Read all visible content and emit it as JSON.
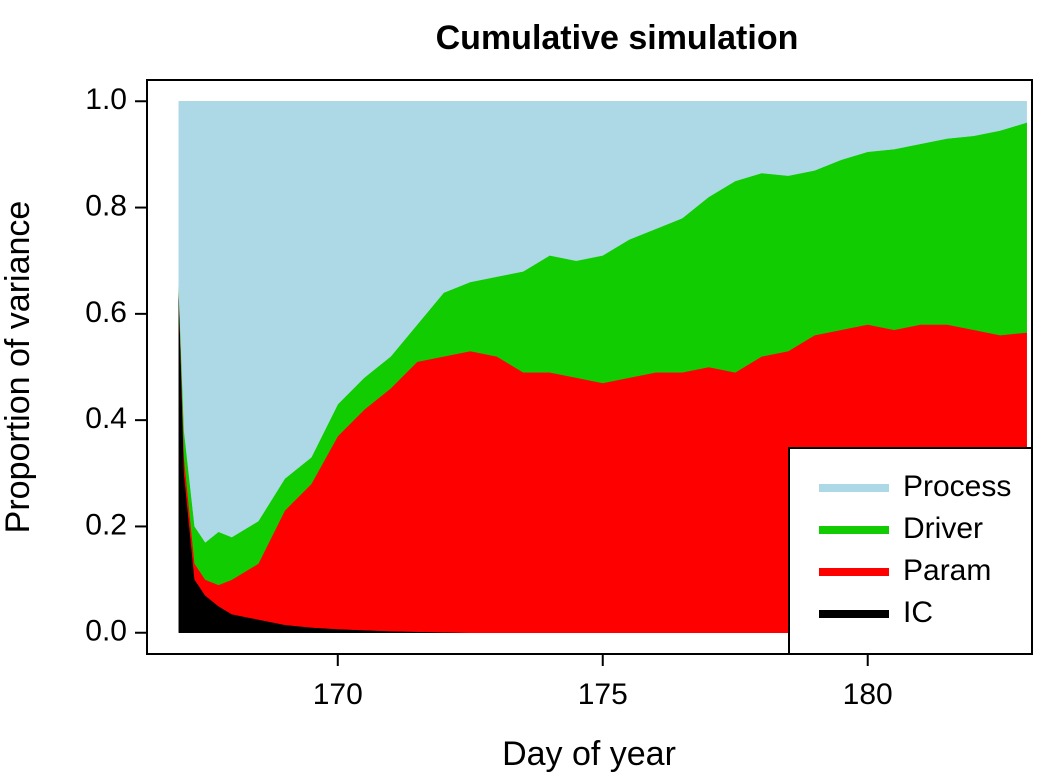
{
  "chart_data": {
    "type": "stacked_area",
    "title": "Cumulative simulation",
    "xlabel": "Day of year",
    "ylabel": "Proportion of variance",
    "x": [
      167,
      167.1,
      167.3,
      167.5,
      167.75,
      168,
      168.5,
      169,
      169.5,
      170,
      170.5,
      171,
      171.5,
      172,
      172.5,
      173,
      173.5,
      174,
      174.5,
      175,
      175.5,
      176,
      176.5,
      177,
      177.5,
      178,
      178.5,
      179,
      179.5,
      180,
      180.5,
      181,
      181.5,
      182,
      182.5,
      183
    ],
    "series": [
      {
        "name": "IC",
        "color": "#000000",
        "values": [
          0.65,
          0.3,
          0.1,
          0.07,
          0.05,
          0.035,
          0.025,
          0.015,
          0.01,
          0.007,
          0.005,
          0.003,
          0.002,
          0.001,
          0,
          0,
          0,
          0,
          0,
          0,
          0,
          0,
          0,
          0,
          0,
          0,
          0,
          0,
          0,
          0,
          0,
          0,
          0,
          0,
          0,
          0
        ]
      },
      {
        "name": "Param",
        "color": "#ff0000",
        "values": [
          0,
          0.03,
          0.03,
          0.03,
          0.04,
          0.065,
          0.105,
          0.215,
          0.27,
          0.363,
          0.415,
          0.457,
          0.508,
          0.519,
          0.53,
          0.52,
          0.49,
          0.49,
          0.48,
          0.47,
          0.48,
          0.49,
          0.49,
          0.5,
          0.49,
          0.52,
          0.53,
          0.56,
          0.57,
          0.58,
          0.57,
          0.58,
          0.58,
          0.57,
          0.56,
          0.565
        ]
      },
      {
        "name": "Driver",
        "color": "#11cc00",
        "values": [
          0,
          0.05,
          0.07,
          0.07,
          0.1,
          0.08,
          0.08,
          0.06,
          0.05,
          0.06,
          0.06,
          0.06,
          0.07,
          0.12,
          0.13,
          0.15,
          0.19,
          0.22,
          0.22,
          0.24,
          0.26,
          0.27,
          0.29,
          0.32,
          0.36,
          0.345,
          0.33,
          0.31,
          0.32,
          0.325,
          0.34,
          0.34,
          0.35,
          0.365,
          0.385,
          0.395
        ]
      },
      {
        "name": "Process",
        "color": "#add8e6",
        "values": [
          0.35,
          0.62,
          0.8,
          0.83,
          0.81,
          0.82,
          0.79,
          0.71,
          0.67,
          0.57,
          0.52,
          0.48,
          0.42,
          0.36,
          0.34,
          0.33,
          0.32,
          0.29,
          0.3,
          0.29,
          0.26,
          0.24,
          0.22,
          0.18,
          0.15,
          0.135,
          0.14,
          0.13,
          0.11,
          0.095,
          0.09,
          0.08,
          0.07,
          0.065,
          0.055,
          0.04
        ]
      }
    ],
    "xlim": [
      166.4,
      183.1
    ],
    "xticks": [
      170,
      175,
      180
    ],
    "ylim": [
      -0.04,
      1.04
    ],
    "yticks": [
      {
        "value": 0,
        "label": "0.0"
      },
      {
        "value": 0.2,
        "label": "0.2"
      },
      {
        "value": 0.4,
        "label": "0.4"
      },
      {
        "value": 0.6,
        "label": "0.6"
      },
      {
        "value": 0.8,
        "label": "0.8"
      },
      {
        "value": 1,
        "label": "1.0"
      }
    ],
    "legend": "bottomright"
  }
}
